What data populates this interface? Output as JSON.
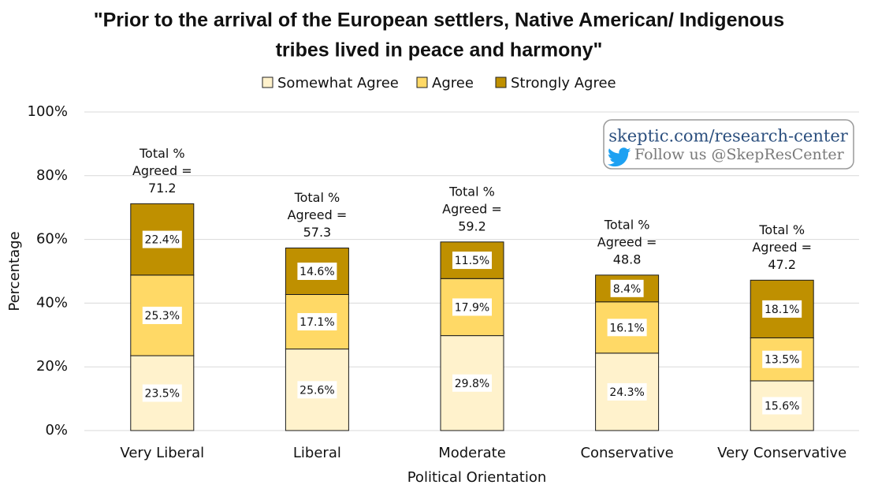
{
  "chart_data": {
    "type": "bar",
    "stacked": true,
    "title_lines": [
      "\"Prior to the arrival of the European settlers, Native American/ Indigenous",
      "tribes lived in peace and harmony\""
    ],
    "xlabel": "Political Orientation",
    "ylabel": "Percentage",
    "ylim": [
      0,
      100
    ],
    "yticks": [
      "0%",
      "20%",
      "40%",
      "60%",
      "80%",
      "100%"
    ],
    "grid": true,
    "legend_position": "top",
    "categories": [
      "Very Liberal",
      "Liberal",
      "Moderate",
      "Conservative",
      "Very Conservative"
    ],
    "series": [
      {
        "name": "Somewhat Agree",
        "color": "#fff2cc",
        "values": [
          23.5,
          25.6,
          29.8,
          24.3,
          15.6
        ],
        "labels": [
          "23.5%",
          "25.6%",
          "29.8%",
          "24.3%",
          "15.6%"
        ]
      },
      {
        "name": "Agree",
        "color": "#ffd966",
        "values": [
          25.3,
          17.1,
          17.9,
          16.1,
          13.5
        ],
        "labels": [
          "25.3%",
          "17.1%",
          "17.9%",
          "16.1%",
          "13.5%"
        ]
      },
      {
        "name": "Strongly Agree",
        "color": "#bf9000",
        "values": [
          22.4,
          14.6,
          11.5,
          8.4,
          18.1
        ],
        "labels": [
          "22.4%",
          "14.6%",
          "11.5%",
          "8.4%",
          "18.1%"
        ]
      }
    ],
    "totals": [
      71.2,
      57.3,
      59.2,
      48.8,
      47.2
    ],
    "total_annotation_lines": [
      "Total %",
      "Agreed ="
    ],
    "total_labels": [
      "71.2",
      "57.3",
      "59.2",
      "48.8",
      "47.2"
    ]
  },
  "watermark": {
    "url": "skeptic.com/research-center",
    "follow": "Follow us @SkepResCenter",
    "icon": "twitter-bird-icon",
    "url_color": "#2b4f7e",
    "icon_color": "#1da1f2"
  }
}
